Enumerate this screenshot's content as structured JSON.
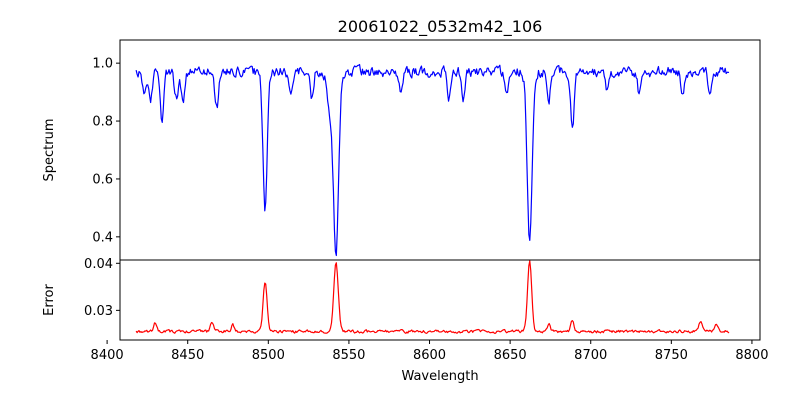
{
  "chart_data": {
    "type": "line",
    "title": "20061022_0532m42_106",
    "xlabel": "Wavelength",
    "xlim": [
      8408,
      8805
    ],
    "xticks": [
      8400,
      8450,
      8500,
      8550,
      8600,
      8650,
      8700,
      8750,
      8800
    ],
    "x_range": [
      8418,
      8786
    ],
    "grid": false,
    "panels": [
      {
        "name": "spectrum",
        "ylabel": "Spectrum",
        "color": "#0000ff",
        "ylim": [
          0.32,
          1.08
        ],
        "yticks": [
          0.4,
          0.6,
          0.8,
          1.0
        ],
        "tick_labels": [
          "0.4",
          "0.6",
          "0.8",
          "1.0"
        ],
        "baseline": 0.97,
        "noise": 0.028,
        "features": [
          {
            "center": 8423,
            "depth": 0.08,
            "width": 1.2
          },
          {
            "center": 8427,
            "depth": 0.1,
            "width": 1.0
          },
          {
            "center": 8434,
            "depth": 0.17,
            "width": 1.0
          },
          {
            "center": 8443,
            "depth": 0.09,
            "width": 1.2
          },
          {
            "center": 8447,
            "depth": 0.1,
            "width": 1.0
          },
          {
            "center": 8468,
            "depth": 0.12,
            "width": 1.2
          },
          {
            "center": 8498.0,
            "depth": 0.49,
            "width": 1.3
          },
          {
            "center": 8514,
            "depth": 0.08,
            "width": 1.3
          },
          {
            "center": 8527,
            "depth": 0.1,
            "width": 1.0
          },
          {
            "center": 8542.0,
            "depth": 0.63,
            "width": 1.6
          },
          {
            "center": 8538,
            "depth": 0.14,
            "width": 1.5
          },
          {
            "center": 8582,
            "depth": 0.07,
            "width": 1.2
          },
          {
            "center": 8612,
            "depth": 0.09,
            "width": 1.0
          },
          {
            "center": 8621,
            "depth": 0.1,
            "width": 1.0
          },
          {
            "center": 8648,
            "depth": 0.08,
            "width": 1.0
          },
          {
            "center": 8662.1,
            "depth": 0.59,
            "width": 1.5
          },
          {
            "center": 8674,
            "depth": 0.1,
            "width": 1.0
          },
          {
            "center": 8688.6,
            "depth": 0.21,
            "width": 1.0
          },
          {
            "center": 8710,
            "depth": 0.07,
            "width": 1.0
          },
          {
            "center": 8730,
            "depth": 0.07,
            "width": 1.0
          },
          {
            "center": 8757,
            "depth": 0.07,
            "width": 1.0
          },
          {
            "center": 8774,
            "depth": 0.08,
            "width": 1.0
          }
        ]
      },
      {
        "name": "error",
        "ylabel": "Error",
        "color": "#ff0000",
        "ylim": [
          0.0237,
          0.0407
        ],
        "yticks": [
          0.03,
          0.04
        ],
        "tick_labels": [
          "0.03",
          "0.04"
        ],
        "baseline": 0.0255,
        "noise": 0.0005,
        "features": [
          {
            "center": 8430,
            "depth": 0.0018,
            "width": 1.0
          },
          {
            "center": 8465,
            "depth": 0.0022,
            "width": 1.0
          },
          {
            "center": 8478,
            "depth": 0.0014,
            "width": 1.0
          },
          {
            "center": 8498.0,
            "depth": 0.0106,
            "width": 1.2
          },
          {
            "center": 8542.0,
            "depth": 0.0145,
            "width": 1.4
          },
          {
            "center": 8662.1,
            "depth": 0.0148,
            "width": 1.3
          },
          {
            "center": 8674,
            "depth": 0.0016,
            "width": 1.0
          },
          {
            "center": 8688.6,
            "depth": 0.0025,
            "width": 1.0
          },
          {
            "center": 8768,
            "depth": 0.0022,
            "width": 1.0
          },
          {
            "center": 8778,
            "depth": 0.0018,
            "width": 1.0
          }
        ]
      }
    ]
  }
}
